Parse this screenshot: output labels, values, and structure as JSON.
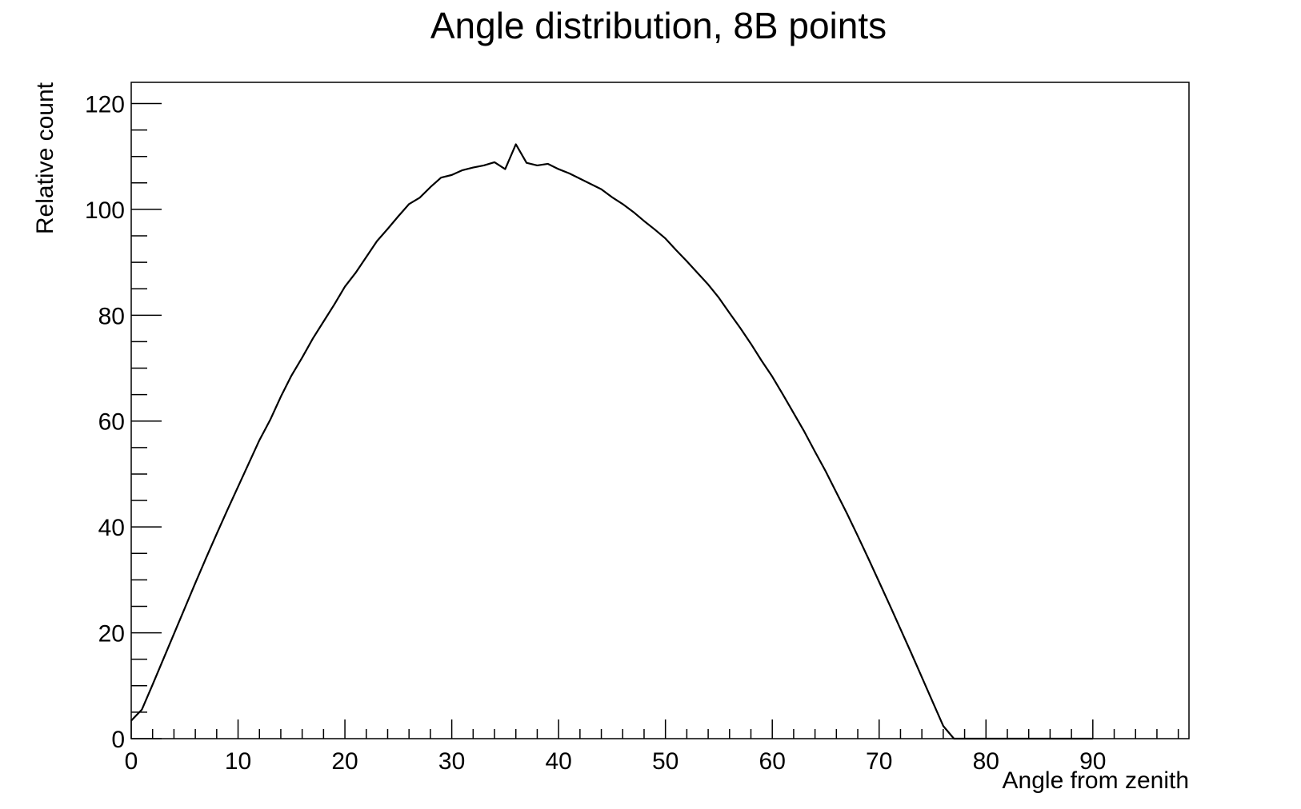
{
  "chart_data": {
    "type": "line",
    "title": "Angle distribution, 8B points",
    "xlabel": "Angle from zenith",
    "ylabel": "Relative count",
    "xlim": [
      0,
      99
    ],
    "ylim": [
      0,
      124
    ],
    "x_ticks": [
      0,
      10,
      20,
      30,
      40,
      50,
      60,
      70,
      80,
      90
    ],
    "y_ticks": [
      0,
      20,
      40,
      60,
      80,
      100,
      120
    ],
    "x_tick_labels": [
      "0",
      "10",
      "20",
      "30",
      "40",
      "50",
      "60",
      "70",
      "80",
      "90"
    ],
    "y_tick_labels": [
      "0",
      "20",
      "40",
      "60",
      "80",
      "100",
      "120"
    ],
    "grid": false,
    "legend": "none",
    "line_color": "#000000",
    "x": [
      0,
      1,
      2,
      3,
      4,
      5,
      6,
      7,
      8,
      9,
      10,
      11,
      12,
      13,
      14,
      15,
      16,
      17,
      18,
      19,
      20,
      21,
      22,
      23,
      24,
      25,
      26,
      27,
      28,
      29,
      30,
      31,
      32,
      33,
      34,
      35,
      36,
      37,
      38,
      39,
      40,
      41,
      42,
      43,
      44,
      45,
      46,
      47,
      48,
      49,
      50,
      51,
      52,
      53,
      54,
      55,
      56,
      57,
      58,
      59,
      60,
      61,
      62,
      63,
      64,
      65,
      66,
      67,
      68,
      69,
      70,
      71,
      72,
      73,
      74,
      75,
      76,
      77,
      78,
      79,
      80,
      81,
      82,
      83,
      84,
      85,
      86,
      87,
      88,
      89,
      90
    ],
    "y": [
      3.4,
      5.5,
      10.2,
      15.0,
      19.8,
      24.6,
      29.4,
      34.1,
      38.7,
      43.2,
      47.6,
      52.0,
      56.4,
      60.2,
      64.6,
      68.6,
      72.0,
      75.6,
      78.8,
      82.0,
      85.4,
      88.0,
      91.0,
      94.0,
      96.3,
      98.7,
      101.0,
      102.2,
      104.2,
      106.0,
      106.5,
      107.4,
      107.9,
      108.3,
      108.9,
      107.6,
      112.3,
      108.8,
      108.3,
      108.6,
      107.6,
      106.8,
      105.8,
      104.8,
      103.8,
      102.3,
      101.0,
      99.5,
      97.8,
      96.2,
      94.5,
      92.3,
      90.2,
      88.0,
      85.8,
      83.3,
      80.4,
      77.6,
      74.6,
      71.4,
      68.4,
      65.0,
      61.5,
      58.0,
      54.2,
      50.5,
      46.5,
      42.5,
      38.3,
      34.0,
      29.6,
      25.2,
      20.7,
      16.2,
      11.6,
      7.0,
      2.4,
      0.0,
      0.0,
      0.0,
      0.0,
      0.0,
      0.0,
      0.0,
      0.0,
      0.0,
      0.0,
      0.0,
      0.0,
      0.0,
      0.0
    ]
  }
}
